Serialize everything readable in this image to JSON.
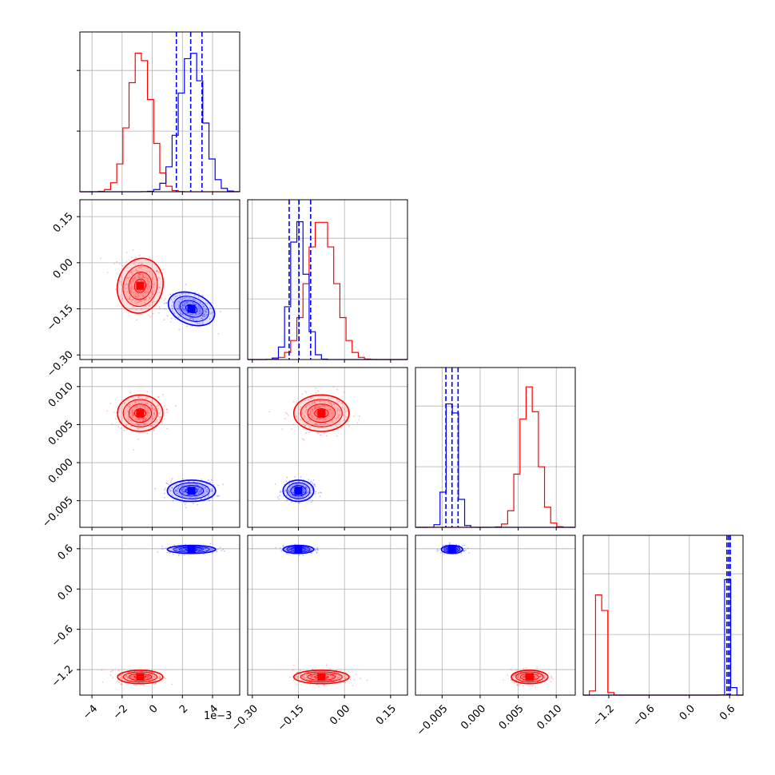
{
  "chart_data": {
    "type": "corner",
    "series_colors": [
      "#ff0000",
      "#0000ff"
    ],
    "offset_label": "1e−3",
    "params": [
      {
        "range": [
          -4.8,
          5.8
        ],
        "ticks": [
          -4,
          -2,
          0,
          2,
          4
        ],
        "tick_labels": [
          "−4",
          "−2",
          "0",
          "2",
          "4"
        ]
      },
      {
        "range": [
          -0.315,
          0.205
        ],
        "ticks": [
          -0.3,
          -0.15,
          0.0,
          0.15
        ],
        "tick_labels": [
          "−0.30",
          "−0.15",
          "0.00",
          "0.15"
        ]
      },
      {
        "range": [
          -0.0085,
          0.0125
        ],
        "ticks": [
          -0.005,
          0.0,
          0.005,
          0.01
        ],
        "tick_labels": [
          "−0.005",
          "0.000",
          "0.005",
          "0.010"
        ]
      },
      {
        "range": [
          -1.58,
          0.8
        ],
        "ticks": [
          -1.2,
          -0.6,
          0.0,
          0.6
        ],
        "tick_labels": [
          "−1.2",
          "−0.6",
          "0.0",
          "0.6"
        ]
      }
    ],
    "series": [
      {
        "color": "#ff0000",
        "means": [
          -0.8,
          -0.075,
          0.0065,
          -1.31
        ],
        "sds": [
          0.75,
          0.045,
          0.0012,
          0.05
        ],
        "corr": [
          [
            0,
            1,
            -0.25
          ]
        ],
        "peaks": [
          1.0,
          1.0,
          1.0,
          1.0
        ]
      },
      {
        "color": "#0000ff",
        "means": [
          2.6,
          -0.15,
          -0.0037,
          0.59
        ],
        "sds": [
          0.8,
          0.025,
          0.0007,
          0.03
        ],
        "corr": [
          [
            0,
            1,
            -0.4
          ]
        ],
        "peaks": [
          1.0,
          1.0,
          1.0,
          1.0
        ]
      }
    ],
    "quantile_lines": [
      [
        1.6,
        2.55,
        3.3
      ],
      [
        -0.18,
        -0.148,
        -0.11
      ],
      [
        -0.0045,
        -0.0037,
        -0.0029
      ],
      [
        0.56,
        0.585,
        0.61
      ]
    ],
    "quantile_color": "#0000ff"
  }
}
